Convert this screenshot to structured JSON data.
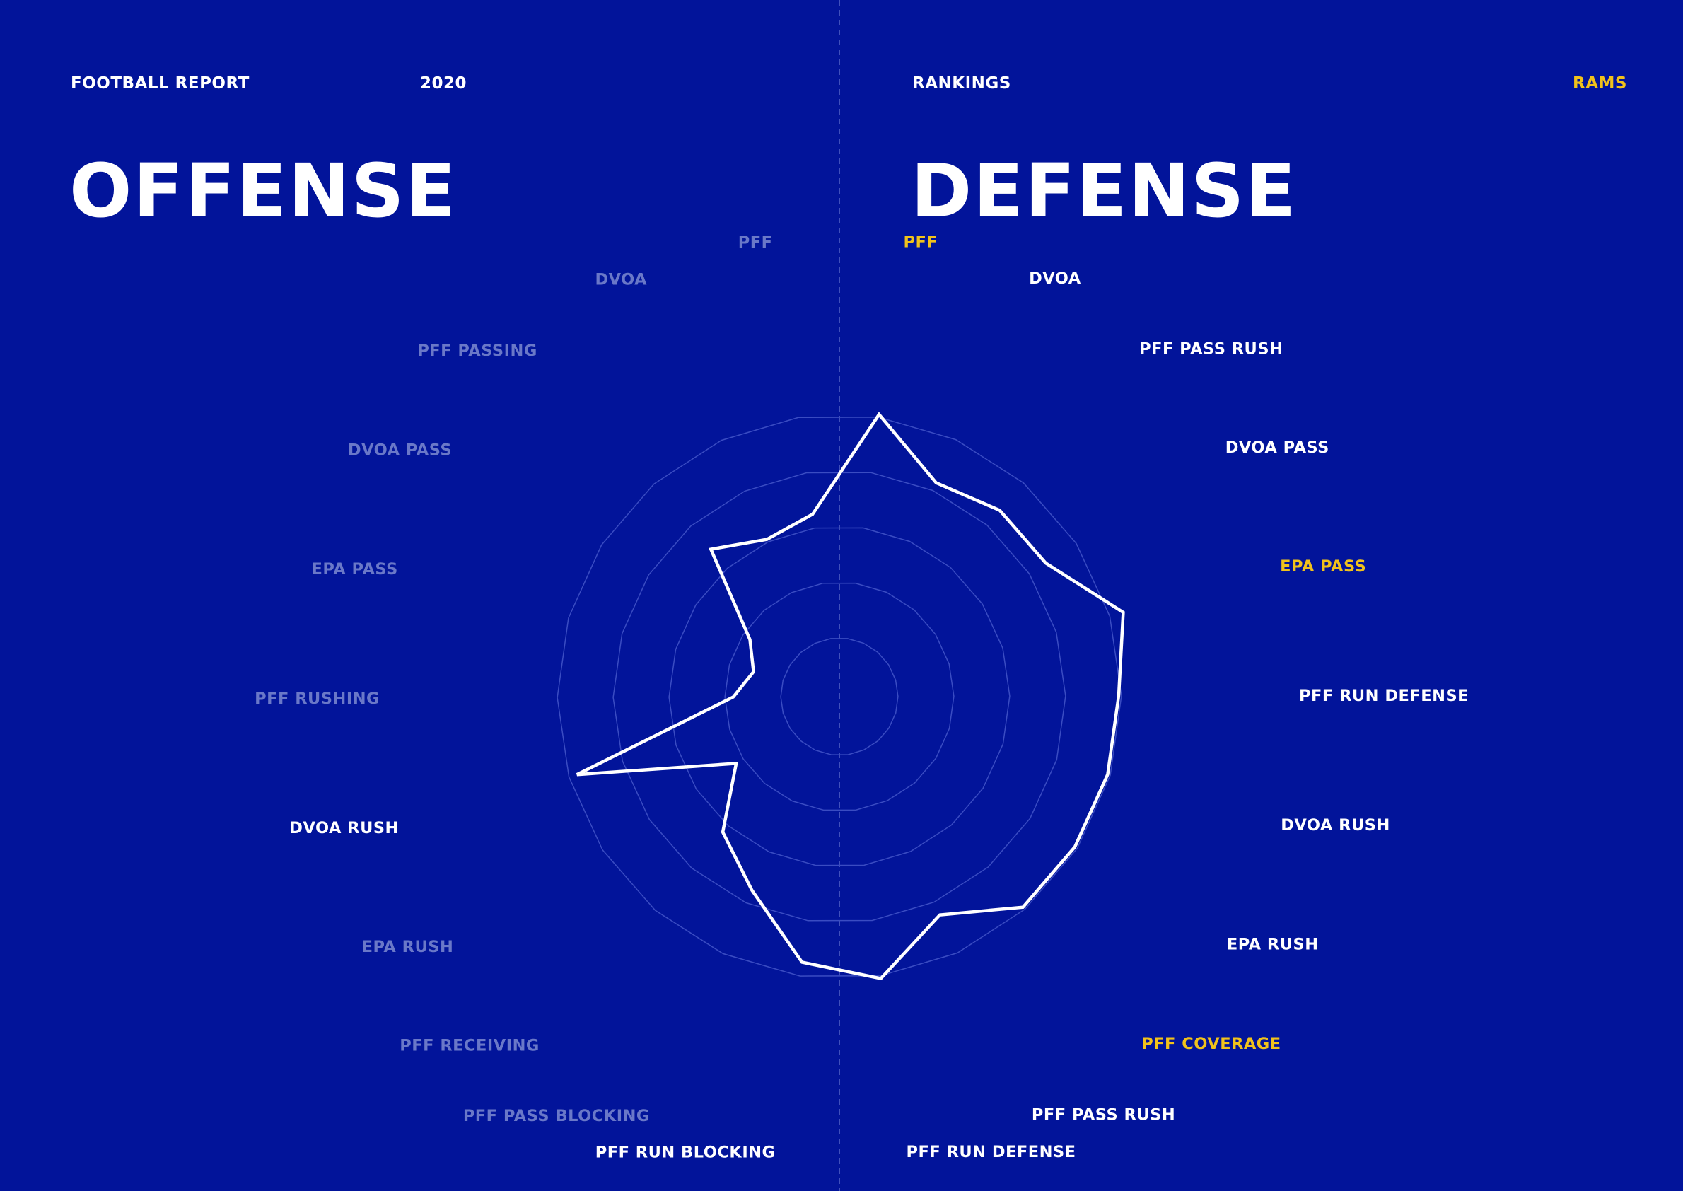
{
  "header": {
    "report": "FOOTBALL REPORT",
    "year": "2020",
    "section": "RANKINGS",
    "team": "RAMS"
  },
  "titles": {
    "offense": "OFFENSE",
    "defense": "DEFENSE"
  },
  "colors": {
    "background": "#02149a",
    "grid": "#3a4cc2",
    "dim_label": "#6a78c8",
    "label": "#ffffff",
    "highlight": "#f1c21b",
    "line": "#ffffff",
    "divider": "#5565c6"
  },
  "chart_data": {
    "type": "radar",
    "rings": 5,
    "grid": true,
    "axes": [
      {
        "name": "PFF",
        "side": "defense",
        "value": 5.1,
        "style": "highlight"
      },
      {
        "name": "DVOA",
        "side": "defense",
        "value": 4.2,
        "style": "normal"
      },
      {
        "name": "PFF PASS RUSH",
        "side": "defense",
        "value": 4.4,
        "style": "normal"
      },
      {
        "name": "DVOA PASS",
        "side": "defense",
        "value": 4.4,
        "style": "normal"
      },
      {
        "name": "EPA PASS",
        "side": "defense",
        "value": 5.3,
        "style": "highlight"
      },
      {
        "name": "PFF RUN DEFENSE",
        "side": "defense",
        "value": 5.0,
        "style": "normal"
      },
      {
        "name": "DVOA RUSH",
        "side": "defense",
        "value": 5.0,
        "style": "normal"
      },
      {
        "name": "EPA RUSH",
        "side": "defense",
        "value": 5.0,
        "style": "normal"
      },
      {
        "name": "PFF COVERAGE",
        "side": "defense",
        "value": 5.0,
        "style": "highlight"
      },
      {
        "name": "PFF PASS RUSH",
        "side": "defense",
        "value": 4.3,
        "style": "normal"
      },
      {
        "name": "PFF RUN DEFENSE",
        "side": "defense",
        "value": 5.1,
        "style": "normal"
      },
      {
        "name": "PFF RUN BLOCKING",
        "side": "offense",
        "value": 4.8,
        "style": "normal"
      },
      {
        "name": "PFF PASS BLOCKING",
        "side": "offense",
        "value": 3.8,
        "style": "dim"
      },
      {
        "name": "PFF RECEIVING",
        "side": "offense",
        "value": 3.2,
        "style": "dim"
      },
      {
        "name": "EPA RUSH",
        "side": "offense",
        "value": 2.2,
        "style": "dim"
      },
      {
        "name": "DVOA RUSH",
        "side": "offense",
        "value": 4.9,
        "style": "normal"
      },
      {
        "name": "PFF RUSHING",
        "side": "offense",
        "value": 1.9,
        "style": "dim"
      },
      {
        "name": "EPA PASS",
        "side": "offense",
        "value": 1.6,
        "style": "dim"
      },
      {
        "name": "DVOA PASS",
        "side": "offense",
        "value": 1.9,
        "style": "dim"
      },
      {
        "name": "PFF PASSING",
        "side": "offense",
        "value": 3.5,
        "style": "dim"
      },
      {
        "name": "DVOA",
        "side": "offense",
        "value": 3.1,
        "style": "dim"
      },
      {
        "name": "PFF",
        "side": "offense",
        "value": 3.3,
        "style": "dim"
      }
    ]
  }
}
